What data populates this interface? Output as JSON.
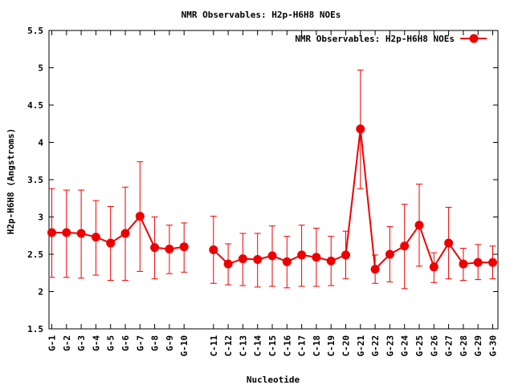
{
  "chart_data": {
    "type": "line",
    "title": "NMR Observables: H2p-H6H8 NOEs",
    "xlabel": "Nucleotide",
    "ylabel": "H2p-H6H8 (Angstroms)",
    "ylim": [
      1.5,
      5.5
    ],
    "yticks": [
      "1.5",
      "2",
      "2.5",
      "3",
      "3.5",
      "4",
      "4.5",
      "5",
      "5.5"
    ],
    "legend_position": "top-right",
    "grid": false,
    "series": [
      {
        "name": "NMR Observables: H2p-H6H8 NOEs",
        "color": "#ee0000",
        "points": [
          {
            "label": "G-1",
            "pos": 1,
            "y": 2.79,
            "lo": 2.19,
            "hi": 3.38
          },
          {
            "label": "G-2",
            "pos": 2,
            "y": 2.79,
            "lo": 2.19,
            "hi": 3.36
          },
          {
            "label": "G-3",
            "pos": 3,
            "y": 2.78,
            "lo": 2.18,
            "hi": 3.36
          },
          {
            "label": "G-4",
            "pos": 4,
            "y": 2.73,
            "lo": 2.22,
            "hi": 3.22
          },
          {
            "label": "G-5",
            "pos": 5,
            "y": 2.65,
            "lo": 2.15,
            "hi": 3.14
          },
          {
            "label": "G-6",
            "pos": 6,
            "y": 2.78,
            "lo": 2.15,
            "hi": 3.4
          },
          {
            "label": "G-7",
            "pos": 7,
            "y": 3.01,
            "lo": 2.27,
            "hi": 3.74
          },
          {
            "label": "G-8",
            "pos": 8,
            "y": 2.59,
            "lo": 2.17,
            "hi": 3.0
          },
          {
            "label": "G-9",
            "pos": 9,
            "y": 2.57,
            "lo": 2.24,
            "hi": 2.89
          },
          {
            "label": "G-10",
            "pos": 10,
            "y": 2.6,
            "lo": 2.26,
            "hi": 2.92
          },
          {
            "label": "C-11",
            "pos": 12,
            "y": 2.56,
            "lo": 2.11,
            "hi": 3.01
          },
          {
            "label": "C-12",
            "pos": 13,
            "y": 2.37,
            "lo": 2.09,
            "hi": 2.64
          },
          {
            "label": "C-13",
            "pos": 14,
            "y": 2.44,
            "lo": 2.08,
            "hi": 2.78
          },
          {
            "label": "C-14",
            "pos": 15,
            "y": 2.43,
            "lo": 2.06,
            "hi": 2.78
          },
          {
            "label": "C-15",
            "pos": 16,
            "y": 2.48,
            "lo": 2.07,
            "hi": 2.88
          },
          {
            "label": "C-16",
            "pos": 17,
            "y": 2.4,
            "lo": 2.05,
            "hi": 2.74
          },
          {
            "label": "C-17",
            "pos": 18,
            "y": 2.49,
            "lo": 2.07,
            "hi": 2.89
          },
          {
            "label": "C-18",
            "pos": 19,
            "y": 2.46,
            "lo": 2.07,
            "hi": 2.85
          },
          {
            "label": "C-19",
            "pos": 20,
            "y": 2.41,
            "lo": 2.08,
            "hi": 2.74
          },
          {
            "label": "C-20",
            "pos": 21,
            "y": 2.49,
            "lo": 2.17,
            "hi": 2.81
          },
          {
            "label": "G-21",
            "pos": 22,
            "y": 4.18,
            "lo": 3.38,
            "hi": 4.97
          },
          {
            "label": "G-22",
            "pos": 23,
            "y": 2.3,
            "lo": 2.11,
            "hi": 2.49
          },
          {
            "label": "G-23",
            "pos": 24,
            "y": 2.5,
            "lo": 2.13,
            "hi": 2.87
          },
          {
            "label": "G-24",
            "pos": 25,
            "y": 2.61,
            "lo": 2.04,
            "hi": 3.17
          },
          {
            "label": "G-25",
            "pos": 26,
            "y": 2.89,
            "lo": 2.34,
            "hi": 3.44
          },
          {
            "label": "G-26",
            "pos": 27,
            "y": 2.33,
            "lo": 2.12,
            "hi": 2.52
          },
          {
            "label": "G-27",
            "pos": 28,
            "y": 2.65,
            "lo": 2.17,
            "hi": 3.13
          },
          {
            "label": "G-28",
            "pos": 29,
            "y": 2.37,
            "lo": 2.15,
            "hi": 2.58
          },
          {
            "label": "G-29",
            "pos": 30,
            "y": 2.39,
            "lo": 2.16,
            "hi": 2.63
          },
          {
            "label": "G-30",
            "pos": 31,
            "y": 2.39,
            "lo": 2.17,
            "hi": 2.61
          }
        ]
      }
    ]
  }
}
